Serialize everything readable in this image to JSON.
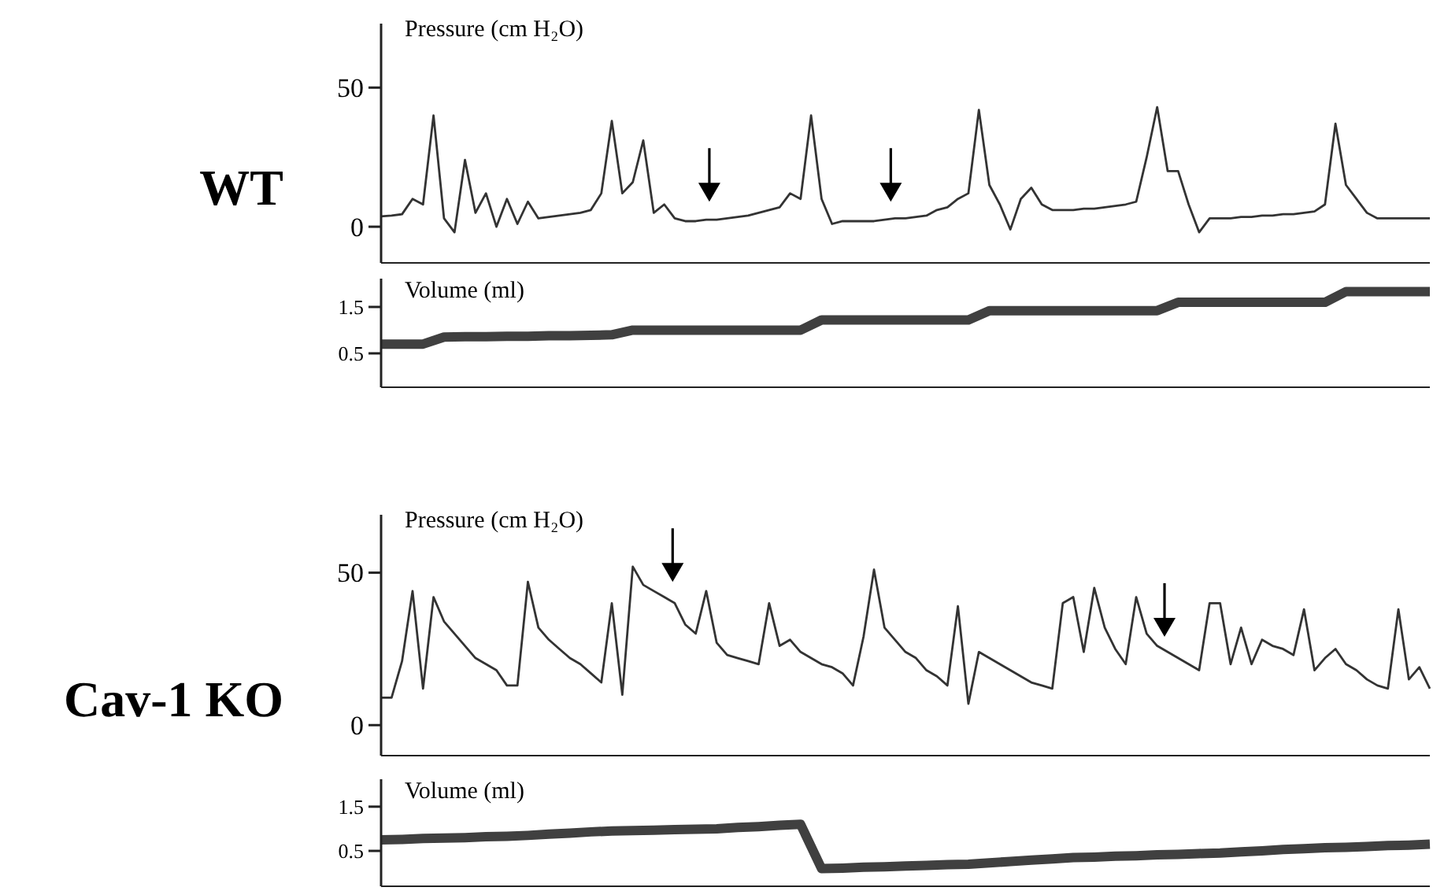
{
  "chart_data": [
    {
      "type": "line",
      "title": "WT",
      "ylabel": "Pressure (cm H₂O)",
      "ylim": [
        -13,
        73
      ],
      "yticks": [
        0,
        50
      ],
      "tick_labels": "y",
      "categories": [
        null,
        null,
        null,
        null,
        null,
        null,
        null,
        null,
        null,
        null,
        null,
        null,
        null,
        null,
        null,
        null,
        null,
        null,
        null,
        null,
        null,
        null,
        null,
        null,
        null,
        null,
        null,
        null,
        null,
        null,
        null,
        null,
        null,
        null,
        null,
        null,
        null,
        null,
        null,
        null,
        null,
        null,
        null,
        null,
        null,
        null,
        null,
        null,
        null,
        null,
        null,
        null,
        null,
        null,
        null,
        null,
        null,
        null,
        null,
        null,
        null,
        null,
        null,
        null,
        null,
        null,
        null,
        null,
        null,
        null,
        null,
        null,
        null,
        null,
        null,
        null,
        null,
        null,
        null,
        null,
        null,
        null,
        null,
        null,
        null,
        null,
        null,
        null,
        null,
        null,
        null,
        null,
        null,
        null,
        null,
        null,
        null,
        null,
        null,
        null,
        null
      ],
      "series": [
        {
          "color": "#333333",
          "values": [
            3.7,
            4,
            4.5,
            10,
            8,
            40,
            3,
            -2,
            24,
            5,
            12,
            0,
            10,
            1,
            9,
            3,
            3.5,
            4,
            4.5,
            5,
            6,
            12,
            38,
            12,
            16,
            31,
            5,
            8,
            3,
            2,
            2,
            2.5,
            2.5,
            3,
            3.5,
            4,
            5,
            6,
            7,
            12,
            10,
            40,
            10,
            1,
            2,
            2,
            2,
            2,
            2.5,
            3,
            3,
            3.5,
            4,
            6,
            7,
            10,
            12,
            42,
            15,
            8,
            -1,
            10,
            14,
            8,
            6,
            6,
            6,
            6.5,
            6.5,
            7,
            7.5,
            8,
            9,
            25,
            43,
            20,
            20,
            8,
            -2,
            3,
            3,
            3,
            3.5,
            3.5,
            4,
            4,
            4.5,
            4.5,
            5,
            5.5,
            8,
            37,
            15,
            10,
            5,
            3,
            3,
            3,
            3,
            3,
            3
          ]
        }
      ]
    },
    {
      "type": "line",
      "ylabel": "Volume (ml)",
      "ylim": [
        -0.23,
        2.11
      ],
      "yticks": [
        0.5,
        1.5
      ],
      "tick_labels": "y",
      "categories": [
        null,
        null,
        null,
        null,
        null,
        null,
        null,
        null,
        null,
        null,
        null,
        null,
        null,
        null,
        null,
        null,
        null,
        null,
        null,
        null,
        null,
        null,
        null,
        null,
        null,
        null,
        null,
        null,
        null,
        null,
        null,
        null,
        null,
        null,
        null,
        null,
        null,
        null,
        null,
        null,
        null,
        null,
        null,
        null,
        null,
        null,
        null,
        null,
        null,
        null,
        null
      ],
      "series": [
        {
          "color": "#404040",
          "values": [
            0.7,
            0.7,
            0.7,
            0.85,
            0.86,
            0.86,
            0.87,
            0.87,
            0.88,
            0.88,
            0.89,
            0.9,
            1.0,
            1.0,
            1.0,
            1.0,
            1.0,
            1.0,
            1.0,
            1.0,
            1.0,
            1.22,
            1.22,
            1.22,
            1.22,
            1.22,
            1.22,
            1.22,
            1.22,
            1.42,
            1.42,
            1.42,
            1.42,
            1.42,
            1.42,
            1.42,
            1.42,
            1.42,
            1.6,
            1.6,
            1.6,
            1.6,
            1.6,
            1.6,
            1.6,
            1.6,
            1.83,
            1.83,
            1.83,
            1.83,
            1.83
          ]
        }
      ]
    },
    {
      "type": "line",
      "title": "Cav-1 KO",
      "ylabel": "Pressure (cm H₂O)",
      "ylim": [
        -10,
        69
      ],
      "yticks": [
        0,
        50
      ],
      "tick_labels": "y",
      "categories": [
        null,
        null,
        null,
        null,
        null,
        null,
        null,
        null,
        null,
        null,
        null,
        null,
        null,
        null,
        null,
        null,
        null,
        null,
        null,
        null,
        null,
        null,
        null,
        null,
        null,
        null,
        null,
        null,
        null,
        null,
        null,
        null,
        null,
        null,
        null,
        null,
        null,
        null,
        null,
        null,
        null,
        null,
        null,
        null,
        null,
        null,
        null,
        null,
        null,
        null,
        null,
        null,
        null,
        null,
        null,
        null,
        null,
        null,
        null,
        null,
        null,
        null,
        null,
        null,
        null,
        null,
        null,
        null,
        null,
        null,
        null,
        null,
        null,
        null,
        null,
        null,
        null,
        null,
        null,
        null,
        null,
        null,
        null,
        null,
        null,
        null,
        null,
        null,
        null,
        null,
        null,
        null,
        null,
        null,
        null,
        null,
        null,
        null,
        null,
        null,
        null
      ],
      "series": [
        {
          "color": "#333333",
          "values": [
            9,
            9,
            21,
            44,
            12,
            42,
            34,
            30,
            26,
            22,
            20,
            18,
            13,
            13,
            47,
            32,
            28,
            25,
            22,
            20,
            17,
            14,
            40,
            10,
            52,
            46,
            44,
            42,
            40,
            33,
            30,
            44,
            27,
            23,
            22,
            21,
            20,
            40,
            26,
            28,
            24,
            22,
            20,
            19,
            17,
            13,
            29,
            51,
            32,
            28,
            24,
            22,
            18,
            16,
            13,
            39,
            7,
            24,
            22,
            20,
            18,
            16,
            14,
            13,
            12,
            40,
            42,
            24,
            45,
            32,
            25,
            20,
            42,
            30,
            26,
            24,
            22,
            20,
            18,
            40,
            40,
            20,
            32,
            20,
            28,
            26,
            25,
            23,
            38,
            18,
            22,
            25,
            20,
            18,
            15,
            13,
            12,
            38,
            15,
            19,
            12
          ]
        }
      ]
    },
    {
      "type": "line",
      "ylabel": "Volume (ml)",
      "ylim": [
        -0.3,
        2.12
      ],
      "yticks": [
        0.5,
        1.5
      ],
      "tick_labels": "y",
      "categories": [
        null,
        null,
        null,
        null,
        null,
        null,
        null,
        null,
        null,
        null,
        null,
        null,
        null,
        null,
        null,
        null,
        null,
        null,
        null,
        null,
        null,
        null,
        null,
        null,
        null,
        null,
        null,
        null,
        null,
        null,
        null,
        null,
        null,
        null,
        null,
        null,
        null,
        null,
        null,
        null,
        null,
        null,
        null,
        null,
        null,
        null,
        null,
        null,
        null,
        null,
        null
      ],
      "series": [
        {
          "color": "#404040",
          "values": [
            0.75,
            0.76,
            0.78,
            0.79,
            0.8,
            0.82,
            0.83,
            0.85,
            0.88,
            0.9,
            0.93,
            0.95,
            0.96,
            0.97,
            0.98,
            0.99,
            1.0,
            1.03,
            1.05,
            1.08,
            1.1,
            0.1,
            0.11,
            0.13,
            0.14,
            0.16,
            0.17,
            0.19,
            0.2,
            0.23,
            0.26,
            0.29,
            0.32,
            0.35,
            0.36,
            0.38,
            0.39,
            0.41,
            0.42,
            0.44,
            0.45,
            0.48,
            0.5,
            0.53,
            0.55,
            0.57,
            0.58,
            0.6,
            0.62,
            0.63,
            0.65
          ]
        }
      ]
    }
  ]
}
